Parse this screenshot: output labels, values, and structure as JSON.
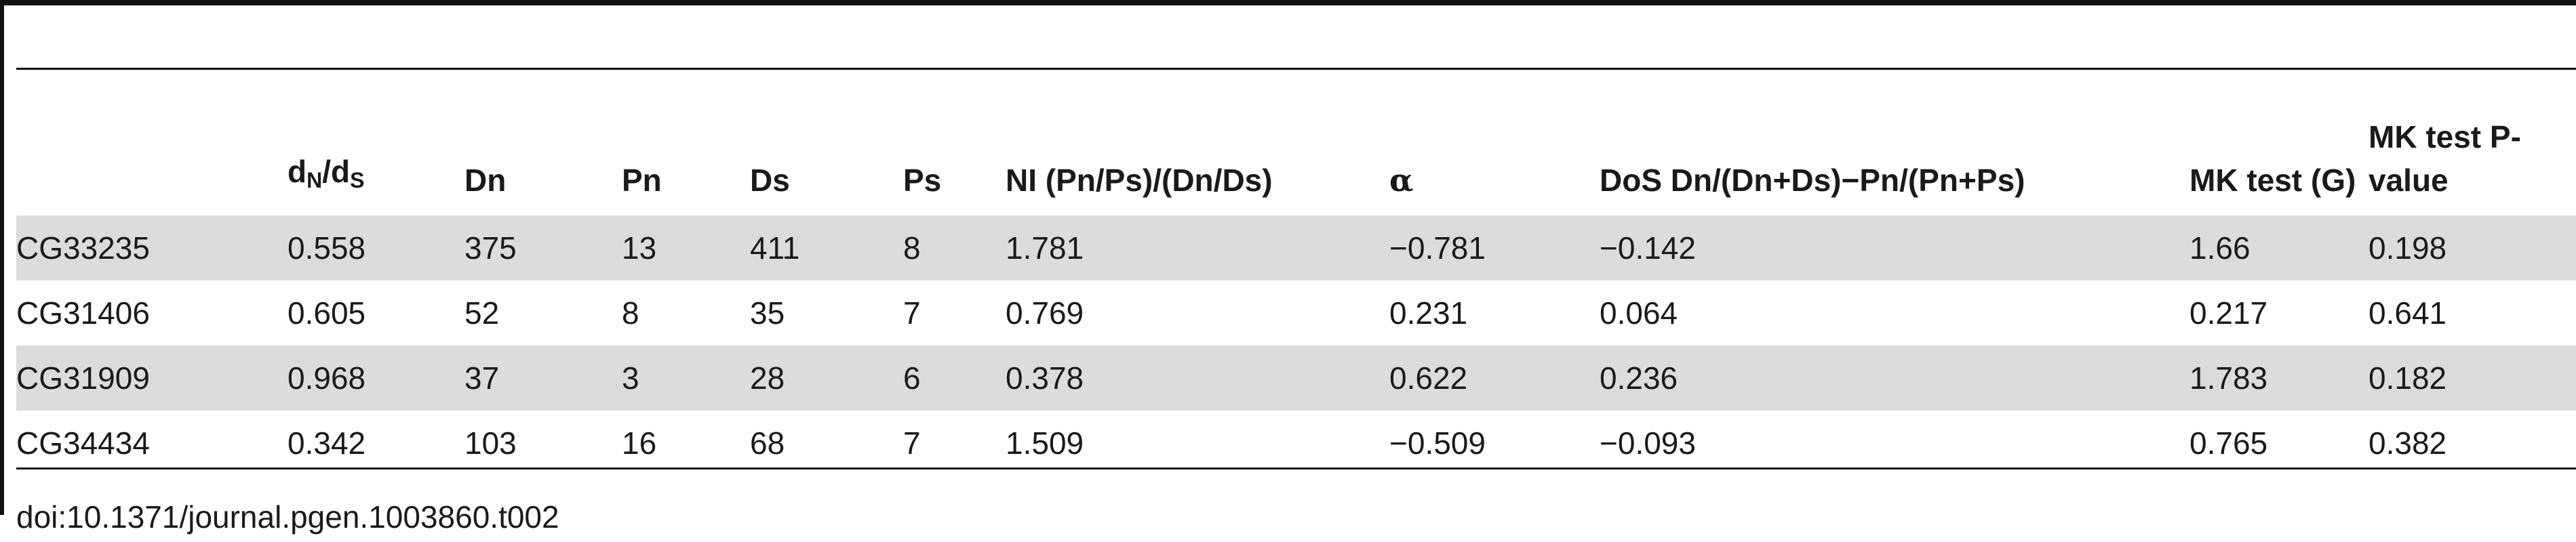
{
  "table": {
    "headers": {
      "label": "",
      "dn_main": "d",
      "dn_sub": "N",
      "dn_sep": "/d",
      "ds_sub": "S",
      "Dn": "Dn",
      "Pn": "Pn",
      "Ds": "Ds",
      "Ps": "Ps",
      "NI": "NI (Pn/Ps)/(Dn/Ds)",
      "alpha": "α",
      "DoS": "DoS Dn/(Dn+Ds)−Pn/(Pn+Ps)",
      "mk_g": "MK test (G)",
      "mk_p": "MK test P-value"
    },
    "rows": [
      {
        "gene": "CG33235",
        "dnds": "0.558",
        "Dn": "375",
        "Pn": "13",
        "Ds": "411",
        "Ps": "8",
        "NI": "1.781",
        "alpha": "−0.781",
        "DoS": "−0.142",
        "mk_g": "1.66",
        "mk_p": "0.198"
      },
      {
        "gene": "CG31406",
        "dnds": "0.605",
        "Dn": "52",
        "Pn": "8",
        "Ds": "35",
        "Ps": "7",
        "NI": "0.769",
        "alpha": "0.231",
        "DoS": "0.064",
        "mk_g": "0.217",
        "mk_p": "0.641"
      },
      {
        "gene": "CG31909",
        "dnds": "0.968",
        "Dn": "37",
        "Pn": "3",
        "Ds": "28",
        "Ps": "6",
        "NI": "0.378",
        "alpha": "0.622",
        "DoS": "0.236",
        "mk_g": "1.783",
        "mk_p": "0.182"
      },
      {
        "gene": "CG34434",
        "dnds": "0.342",
        "Dn": "103",
        "Pn": "16",
        "Ds": "68",
        "Ps": "7",
        "NI": "1.509",
        "alpha": "−0.509",
        "DoS": "−0.093",
        "mk_g": "0.765",
        "mk_p": "0.382"
      }
    ]
  },
  "caption": "doi:10.1371/journal.pgen.1003860.t002"
}
